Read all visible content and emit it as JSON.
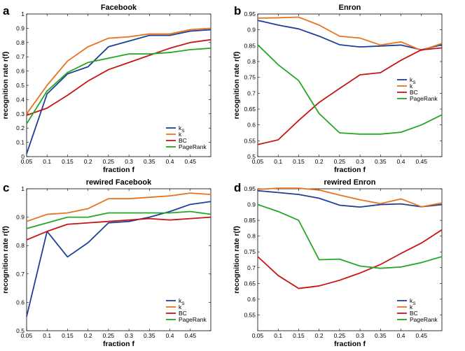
{
  "colors": {
    "ks": "#1f3f96",
    "k": "#e8731e",
    "BC": "#c81414",
    "PageRank": "#22a822"
  },
  "chart_data": [
    {
      "type": "line",
      "letter": "a",
      "title": "Facebook",
      "xlabel": "fraction f",
      "ylabel": "recognition rate r(f)",
      "xlim": [
        0.05,
        0.5
      ],
      "ylim": [
        0,
        1
      ],
      "xticks": [
        0.05,
        0.1,
        0.15,
        0.2,
        0.25,
        0.3,
        0.35,
        0.4,
        0.45
      ],
      "yticks": [
        0,
        0.1,
        0.2,
        0.3,
        0.4,
        0.5,
        0.6,
        0.7,
        0.8,
        0.9,
        1
      ],
      "x": [
        0.05,
        0.1,
        0.15,
        0.2,
        0.25,
        0.3,
        0.35,
        0.4,
        0.45,
        0.5
      ],
      "legend_position": "bottom-right",
      "series": [
        {
          "name": "ks",
          "label_main": "k",
          "label_sub": "S",
          "color_key": "ks",
          "values": [
            0.02,
            0.44,
            0.58,
            0.63,
            0.77,
            0.81,
            0.85,
            0.85,
            0.88,
            0.89
          ]
        },
        {
          "name": "k",
          "label_main": "k",
          "label_sub": "",
          "color_key": "k",
          "values": [
            0.3,
            0.5,
            0.67,
            0.77,
            0.83,
            0.84,
            0.86,
            0.86,
            0.89,
            0.9
          ]
        },
        {
          "name": "BC",
          "label_main": "BC",
          "label_sub": "",
          "color_key": "BC",
          "values": [
            0.29,
            0.34,
            0.43,
            0.53,
            0.61,
            0.66,
            0.71,
            0.76,
            0.8,
            0.82
          ]
        },
        {
          "name": "PageRank",
          "label_main": "PageRank",
          "label_sub": "",
          "color_key": "PageRank",
          "values": [
            0.23,
            0.46,
            0.59,
            0.66,
            0.69,
            0.72,
            0.72,
            0.73,
            0.75,
            0.76
          ]
        }
      ]
    },
    {
      "type": "line",
      "letter": "b",
      "title": "Enron",
      "xlabel": "fraction f",
      "ylabel": "recognition rate r(f)",
      "xlim": [
        0.05,
        0.5
      ],
      "ylim": [
        0.5,
        0.95
      ],
      "xticks": [
        0.05,
        0.1,
        0.15,
        0.2,
        0.25,
        0.3,
        0.35,
        0.4,
        0.45
      ],
      "yticks": [
        0.5,
        0.55,
        0.6,
        0.65,
        0.7,
        0.75,
        0.8,
        0.85,
        0.9,
        0.95
      ],
      "x": [
        0.05,
        0.1,
        0.15,
        0.2,
        0.25,
        0.3,
        0.35,
        0.4,
        0.45,
        0.5
      ],
      "legend_position": "right",
      "series": [
        {
          "name": "ks",
          "label_main": "k",
          "label_sub": "S",
          "color_key": "ks",
          "values": [
            0.93,
            0.915,
            0.903,
            0.88,
            0.853,
            0.846,
            0.849,
            0.852,
            0.837,
            0.853
          ]
        },
        {
          "name": "k",
          "label_main": "k",
          "label_sub": "",
          "color_key": "k",
          "values": [
            0.937,
            0.938,
            0.94,
            0.915,
            0.88,
            0.874,
            0.852,
            0.862,
            0.835,
            0.857
          ]
        },
        {
          "name": "BC",
          "label_main": "BC",
          "label_sub": "",
          "color_key": "BC",
          "values": [
            0.538,
            0.553,
            0.614,
            0.671,
            0.715,
            0.758,
            0.765,
            0.804,
            0.837,
            0.843
          ]
        },
        {
          "name": "PageRank",
          "label_main": "PageRank",
          "label_sub": "",
          "color_key": "PageRank",
          "values": [
            0.853,
            0.79,
            0.74,
            0.636,
            0.575,
            0.571,
            0.571,
            0.577,
            0.6,
            0.632
          ]
        }
      ]
    },
    {
      "type": "line",
      "letter": "c",
      "title": "rewired Facebook",
      "xlabel": "fraction f",
      "ylabel": "recognition rate r(f)",
      "xlim": [
        0.05,
        0.5
      ],
      "ylim": [
        0.5,
        1
      ],
      "xticks": [
        0.05,
        0.1,
        0.15,
        0.2,
        0.25,
        0.3,
        0.35,
        0.4,
        0.45
      ],
      "yticks": [
        0.5,
        0.6,
        0.7,
        0.8,
        0.9,
        1
      ],
      "x": [
        0.05,
        0.1,
        0.15,
        0.2,
        0.25,
        0.3,
        0.35,
        0.4,
        0.45,
        0.5
      ],
      "legend_position": "bottom-right",
      "series": [
        {
          "name": "ks",
          "label_main": "k",
          "label_sub": "S",
          "color_key": "ks",
          "values": [
            0.55,
            0.85,
            0.76,
            0.81,
            0.88,
            0.885,
            0.9,
            0.92,
            0.945,
            0.955
          ]
        },
        {
          "name": "k",
          "label_main": "k",
          "label_sub": "",
          "color_key": "k",
          "values": [
            0.885,
            0.91,
            0.915,
            0.93,
            0.965,
            0.965,
            0.97,
            0.975,
            0.985,
            0.98
          ]
        },
        {
          "name": "BC",
          "label_main": "BC",
          "label_sub": "",
          "color_key": "BC",
          "values": [
            0.82,
            0.85,
            0.875,
            0.88,
            0.885,
            0.89,
            0.895,
            0.89,
            0.895,
            0.9
          ]
        },
        {
          "name": "PageRank",
          "label_main": "PageRank",
          "label_sub": "",
          "color_key": "PageRank",
          "values": [
            0.86,
            0.88,
            0.9,
            0.9,
            0.915,
            0.915,
            0.915,
            0.915,
            0.92,
            0.91
          ]
        }
      ]
    },
    {
      "type": "line",
      "letter": "d",
      "title": "rewired Enron",
      "xlabel": "fraction f",
      "ylabel": "recognition rate r(f)",
      "xlim": [
        0.05,
        0.5
      ],
      "ylim": [
        0.5,
        0.95
      ],
      "xticks": [
        0.05,
        0.1,
        0.15,
        0.2,
        0.25,
        0.3,
        0.35,
        0.4,
        0.45
      ],
      "yticks": [
        0.55,
        0.6,
        0.65,
        0.7,
        0.75,
        0.8,
        0.85,
        0.9,
        0.95
      ],
      "x": [
        0.05,
        0.1,
        0.15,
        0.2,
        0.25,
        0.3,
        0.35,
        0.4,
        0.45,
        0.5
      ],
      "legend_position": "bottom-right",
      "series": [
        {
          "name": "ks",
          "label_main": "k",
          "label_sub": "S",
          "color_key": "ks",
          "values": [
            0.944,
            0.938,
            0.932,
            0.92,
            0.898,
            0.892,
            0.9,
            0.902,
            0.893,
            0.9
          ]
        },
        {
          "name": "k",
          "label_main": "k",
          "label_sub": "",
          "color_key": "k",
          "values": [
            0.948,
            0.952,
            0.952,
            0.946,
            0.93,
            0.915,
            0.903,
            0.918,
            0.893,
            0.905
          ]
        },
        {
          "name": "BC",
          "label_main": "BC",
          "label_sub": "",
          "color_key": "BC",
          "values": [
            0.735,
            0.675,
            0.634,
            0.642,
            0.66,
            0.683,
            0.71,
            0.745,
            0.778,
            0.82
          ]
        },
        {
          "name": "PageRank",
          "label_main": "PageRank",
          "label_sub": "",
          "color_key": "PageRank",
          "values": [
            0.9,
            0.878,
            0.85,
            0.725,
            0.727,
            0.705,
            0.698,
            0.702,
            0.716,
            0.735
          ]
        }
      ]
    }
  ]
}
